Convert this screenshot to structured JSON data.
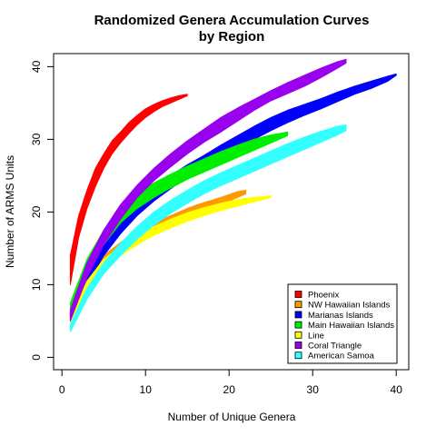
{
  "chart_data": {
    "type": "area",
    "title": [
      "Randomized Genera Accumulation Curves",
      "by Region"
    ],
    "xlabel": "Number of Unique Genera",
    "ylabel": "Number of ARMS Units",
    "xlim": [
      -1,
      41.5
    ],
    "ylim": [
      -1.7,
      41.8
    ],
    "xticks": [
      0,
      10,
      20,
      30,
      40
    ],
    "yticks": [
      0,
      10,
      20,
      30,
      40
    ],
    "grid": false,
    "legend_position": "bottom-right",
    "series": [
      {
        "name": "Phoenix",
        "color": "#ff0000",
        "x": [
          1,
          2,
          3,
          4,
          5,
          6,
          7,
          8,
          9,
          10,
          11,
          12,
          13,
          14,
          15
        ],
        "y_low": [
          10,
          16.5,
          20.5,
          23.5,
          26,
          28,
          29.5,
          30.8,
          32,
          33,
          33.8,
          34.5,
          35,
          35.5,
          36
        ],
        "y_high": [
          14,
          19.5,
          23,
          26,
          28,
          29.8,
          31,
          32.3,
          33.3,
          34.2,
          34.8,
          35.3,
          35.7,
          36,
          36.2
        ]
      },
      {
        "name": "NW Hawaiian Islands",
        "color": "#ff9900",
        "x": [
          1,
          3,
          5,
          7,
          9,
          11,
          13,
          15,
          17,
          19,
          21,
          22
        ],
        "y_low": [
          4.8,
          9.5,
          12.5,
          14.5,
          16,
          17.3,
          18.3,
          19.3,
          20.2,
          21,
          22,
          22.5
        ],
        "y_high": [
          6,
          10.8,
          14,
          15.8,
          17.3,
          18.5,
          19.5,
          20.5,
          21.3,
          22,
          22.8,
          23
        ]
      },
      {
        "name": "Marianas Islands",
        "color": "#0000ff",
        "x": [
          1,
          3,
          5,
          7,
          9,
          11,
          13,
          15,
          17,
          19,
          21,
          23,
          25,
          27,
          29,
          31,
          33,
          35,
          37,
          39,
          40
        ],
        "y_low": [
          5,
          10,
          14,
          17,
          19.5,
          21.5,
          23.2,
          24.8,
          26.2,
          27.5,
          28.7,
          30,
          31.2,
          32.3,
          33.3,
          34.2,
          35.2,
          36.2,
          37,
          38,
          38.8
        ],
        "y_high": [
          6,
          12,
          16,
          19,
          21.5,
          23.3,
          25,
          26.5,
          27.8,
          29.2,
          30.5,
          31.8,
          33,
          34,
          34.8,
          35.6,
          36.5,
          37.3,
          38,
          38.7,
          39
        ]
      },
      {
        "name": "Main Hawaiian Islands",
        "color": "#00ee00",
        "x": [
          1,
          3,
          5,
          7,
          9,
          11,
          13,
          15,
          17,
          19,
          21,
          23,
          25,
          27
        ],
        "y_low": [
          6,
          11.5,
          15.5,
          18.5,
          20.5,
          22,
          23.3,
          24.5,
          25.5,
          26.5,
          27.5,
          28.5,
          29.5,
          30.5
        ],
        "y_high": [
          7.5,
          13.5,
          17.5,
          20.5,
          22.5,
          24,
          25.2,
          26.3,
          27.3,
          28.3,
          29.2,
          30,
          30.6,
          31
        ]
      },
      {
        "name": "Line",
        "color": "#ffff00",
        "x": [
          1,
          3,
          5,
          7,
          9,
          11,
          13,
          15,
          17,
          19,
          21,
          23,
          25
        ],
        "y_low": [
          4,
          9,
          12,
          14,
          15.5,
          16.8,
          17.8,
          18.7,
          19.5,
          20.2,
          20.8,
          21.4,
          22
        ],
        "y_high": [
          5.5,
          10.5,
          13.5,
          15.3,
          16.8,
          18,
          19,
          19.9,
          20.6,
          21.2,
          21.7,
          22,
          22.2
        ]
      },
      {
        "name": "Coral Triangle",
        "color": "#9900ee",
        "x": [
          1,
          3,
          5,
          7,
          9,
          11,
          13,
          15,
          17,
          19,
          21,
          23,
          25,
          27,
          29,
          31,
          33,
          34
        ],
        "y_low": [
          5,
          11,
          15.5,
          19,
          22,
          24.3,
          26.2,
          28,
          29.6,
          31,
          32.5,
          34,
          35.3,
          36.3,
          37.3,
          38.5,
          39.8,
          40.5
        ],
        "y_high": [
          6.5,
          13,
          17.5,
          21,
          23.7,
          26,
          28,
          29.8,
          31.4,
          33,
          34.3,
          35.5,
          36.7,
          37.8,
          38.8,
          39.8,
          40.7,
          41
        ]
      },
      {
        "name": "American Samoa",
        "color": "#33ffff",
        "x": [
          1,
          3,
          5,
          7,
          9,
          11,
          13,
          15,
          17,
          19,
          21,
          23,
          25,
          27,
          29,
          31,
          33,
          34
        ],
        "y_low": [
          3.5,
          8,
          11.5,
          14,
          16.3,
          18.2,
          19.8,
          21.2,
          22.5,
          23.6,
          24.6,
          25.6,
          26.6,
          27.6,
          28.6,
          29.6,
          30.6,
          31.2
        ],
        "y_high": [
          4.5,
          9.5,
          13,
          15.7,
          18,
          20,
          21.6,
          23,
          24.3,
          25.4,
          26.4,
          27.4,
          28.4,
          29.4,
          30.3,
          31.1,
          31.8,
          32
        ]
      }
    ]
  }
}
